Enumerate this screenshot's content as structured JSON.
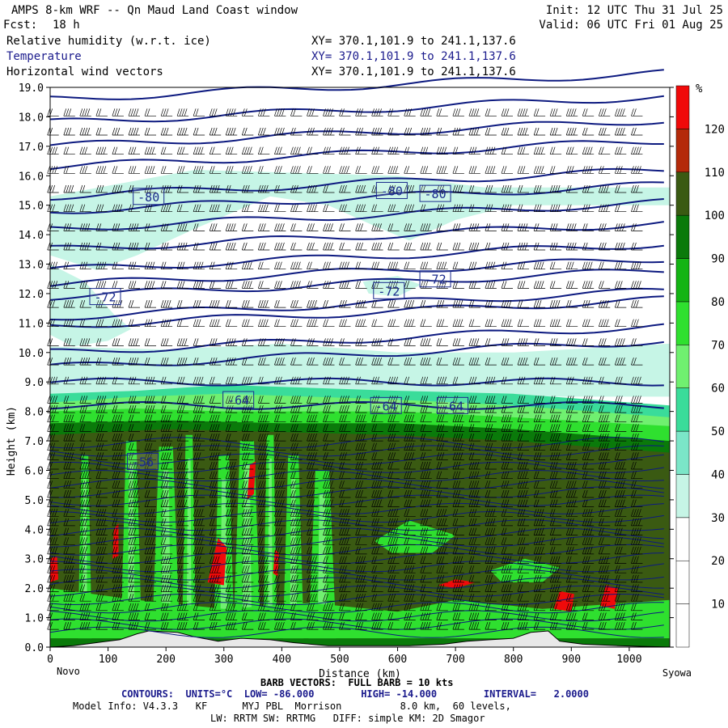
{
  "header": {
    "title": "AMPS 8-km WRF -- Qn Maud Land Coast window",
    "fcst_label": "Fcst:",
    "fcst_value": "18 h",
    "init": "Init: 12 UTC Thu 31 Jul 25",
    "valid": "Valid: 06 UTC Fri 01 Aug 25",
    "fields": [
      {
        "name": "Relative humidity (w.r.t. ice)",
        "xy": "XY= 370.1,101.9 to 241.1,137.6"
      },
      {
        "name": "Temperature",
        "xy": "XY= 370.1,101.9 to 241.1,137.6"
      },
      {
        "name": "Horizontal wind vectors",
        "xy": "XY= 370.1,101.9 to 241.1,137.6"
      }
    ]
  },
  "footer": {
    "left_end": "Novo",
    "right_end": "Syowa",
    "barb_note": "BARB VECTORS:  FULL BARB = 10 kts",
    "contours": "CONTOURS:  UNITS=°C  LOW= -86.000        HIGH= -14.000        INTERVAL=   2.0000",
    "model_info": "Model Info: V4.3.3   KF      MYJ PBL  Morrison          8.0 km,  60 levels,",
    "model_info2": "LW: RRTM SW: RRTMG   DIFF: simple KM: 2D Smagor"
  },
  "chart_data": {
    "type": "heatmap",
    "xlabel": "Distance (km)",
    "ylabel": "Height (km)",
    "xlim": [
      0,
      1070
    ],
    "ylim": [
      0,
      19
    ],
    "x_ticks": [
      0,
      100,
      200,
      300,
      400,
      500,
      600,
      700,
      800,
      900,
      1000
    ],
    "y_ticks": [
      "0.0",
      "1.0",
      "2.0",
      "3.0",
      "4.0",
      "5.0",
      "6.0",
      "7.0",
      "8.0",
      "9.0",
      "10.0",
      "11.0",
      "12.0",
      "13.0",
      "14.0",
      "15.0",
      "16.0",
      "17.0",
      "18.0",
      "19.0"
    ],
    "colorbar": {
      "unit": "%",
      "levels": [
        10,
        20,
        30,
        40,
        50,
        60,
        70,
        80,
        90,
        100,
        110,
        120
      ],
      "colors": [
        "#ffffff",
        "#ffffff",
        "#ffffff",
        "#c6f5e6",
        "#7be6c8",
        "#3adc9a",
        "#70f070",
        "#2fe02f",
        "#14b414",
        "#0a7a0a",
        "#3a5a12",
        "#b42a0a",
        "#f00a0a"
      ]
    },
    "colors": {
      "contour": "#0d1a80",
      "label": "#1a2a8c",
      "barb": "#000000",
      "terrain": "#e8e8e8"
    },
    "contour_labels": [
      {
        "text": "-80",
        "x": 170,
        "y": 15.3
      },
      {
        "text": "-80",
        "x": 590,
        "y": 15.5
      },
      {
        "text": "-80",
        "x": 665,
        "y": 15.4
      },
      {
        "text": "-72",
        "x": 95,
        "y": 11.9
      },
      {
        "text": "-72",
        "x": 585,
        "y": 12.1
      },
      {
        "text": "-72",
        "x": 665,
        "y": 12.5
      },
      {
        "text": "-64",
        "x": 325,
        "y": 8.4
      },
      {
        "text": "-64",
        "x": 580,
        "y": 8.2
      },
      {
        "text": "-64",
        "x": 695,
        "y": 8.2
      },
      {
        "text": "-56",
        "x": 160,
        "y": 6.3
      }
    ],
    "terrain_profile": [
      [
        0,
        0
      ],
      [
        40,
        0.05
      ],
      [
        80,
        0.15
      ],
      [
        120,
        0.25
      ],
      [
        150,
        0.45
      ],
      [
        170,
        0.55
      ],
      [
        220,
        0.5
      ],
      [
        250,
        0.35
      ],
      [
        290,
        0.2
      ],
      [
        330,
        0.3
      ],
      [
        380,
        0.25
      ],
      [
        420,
        0.15
      ],
      [
        480,
        0.05
      ],
      [
        550,
        0.05
      ],
      [
        620,
        0.05
      ],
      [
        680,
        0.1
      ],
      [
        720,
        0.2
      ],
      [
        760,
        0.25
      ],
      [
        800,
        0.3
      ],
      [
        830,
        0.5
      ],
      [
        860,
        0.55
      ],
      [
        880,
        0.2
      ],
      [
        920,
        0.1
      ],
      [
        980,
        0.05
      ],
      [
        1070,
        0
      ]
    ]
  }
}
